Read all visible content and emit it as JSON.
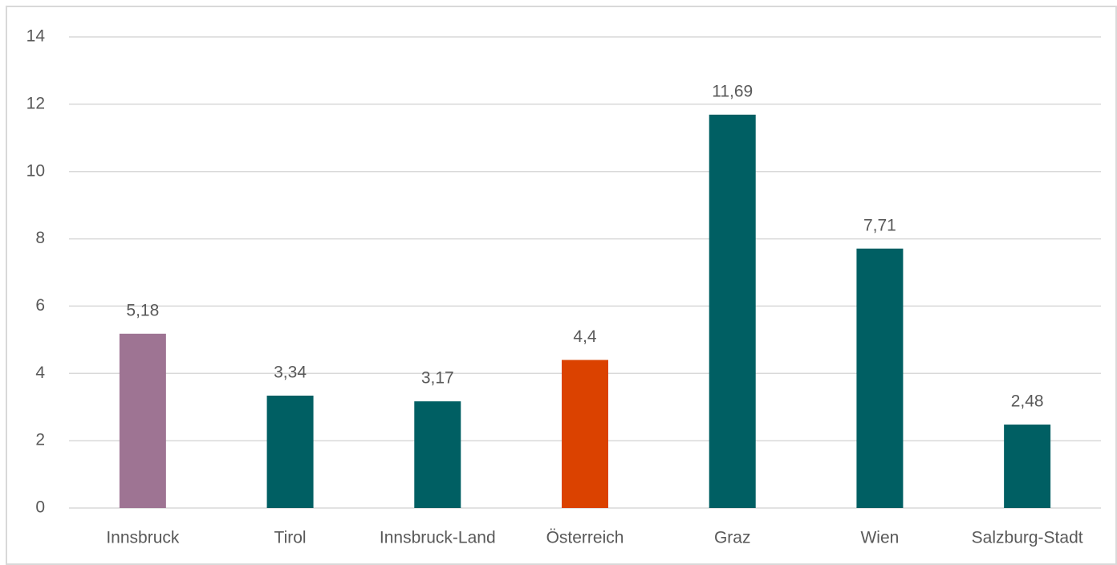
{
  "chart_data": {
    "type": "bar",
    "categories": [
      "Innsbruck",
      "Tirol",
      "Innsbruck-Land",
      "Österreich",
      "Graz",
      "Wien",
      "Salzburg-Stadt"
    ],
    "values": [
      5.18,
      3.34,
      3.17,
      4.4,
      11.69,
      7.71,
      2.48
    ],
    "value_labels": [
      "5,18",
      "3,34",
      "3,17",
      "4,4",
      "11,69",
      "7,71",
      "2,48"
    ],
    "colors": [
      "#9e7493",
      "#005f63",
      "#005f63",
      "#db4200",
      "#005f63",
      "#005f63",
      "#005f63"
    ],
    "ylim": [
      0,
      14
    ],
    "yticks": [
      0,
      2,
      4,
      6,
      8,
      10,
      12,
      14
    ],
    "grid": true
  }
}
